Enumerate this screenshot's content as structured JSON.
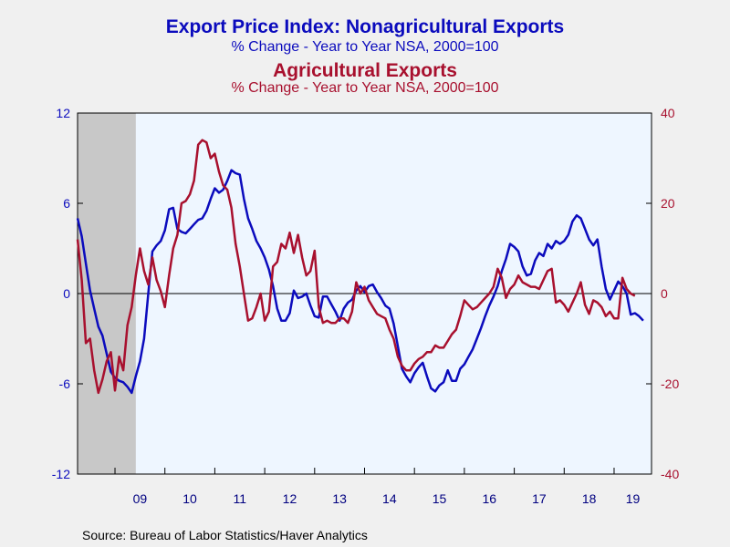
{
  "titles": {
    "line1": "Export Price Index: Nonagricultural Exports",
    "line2": "% Change - Year to Year    NSA, 2000=100",
    "line3": "Agricultural Exports",
    "line4": "% Change - Year to Year    NSA, 2000=100"
  },
  "source": "Source:  Bureau of Labor Statistics/Haver Analytics",
  "chart_data": {
    "type": "line",
    "x_range": [
      "2008-04",
      "2019-10"
    ],
    "x_tick_labels": [
      "09",
      "10",
      "11",
      "12",
      "13",
      "14",
      "15",
      "16",
      "17",
      "18",
      "19"
    ],
    "recession": [
      "2008-04",
      "2009-06"
    ],
    "left_axis": {
      "ylim": [
        -12,
        12
      ],
      "ticks": [
        12,
        6,
        0,
        -6,
        -12
      ],
      "color": "#0b0bbd"
    },
    "right_axis": {
      "ylim": [
        -40,
        40
      ],
      "ticks": [
        40,
        20,
        0,
        -20,
        -40
      ],
      "color": "#a8102e"
    },
    "zero_line": true,
    "series": [
      {
        "axis": "left",
        "color": "#0b0bbd",
        "points": [
          [
            "2008-04",
            5.0
          ],
          [
            "2008-05",
            3.8
          ],
          [
            "2008-06",
            2.0
          ],
          [
            "2008-07",
            0.2
          ],
          [
            "2008-08",
            -1.0
          ],
          [
            "2008-09",
            -2.2
          ],
          [
            "2008-10",
            -2.8
          ],
          [
            "2008-11",
            -4.0
          ],
          [
            "2008-12",
            -5.2
          ],
          [
            "2009-01",
            -5.6
          ],
          [
            "2009-02",
            -5.8
          ],
          [
            "2009-03",
            -5.9
          ],
          [
            "2009-04",
            -6.2
          ],
          [
            "2009-05",
            -6.6
          ],
          [
            "2009-06",
            -5.5
          ],
          [
            "2009-07",
            -4.5
          ],
          [
            "2009-08",
            -3.0
          ],
          [
            "2009-09",
            0.0
          ],
          [
            "2009-10",
            2.8
          ],
          [
            "2009-11",
            3.2
          ],
          [
            "2009-12",
            3.5
          ],
          [
            "2010-01",
            4.2
          ],
          [
            "2010-02",
            5.6
          ],
          [
            "2010-03",
            5.7
          ],
          [
            "2010-04",
            4.3
          ],
          [
            "2010-05",
            4.1
          ],
          [
            "2010-06",
            4.0
          ],
          [
            "2010-07",
            4.3
          ],
          [
            "2010-08",
            4.6
          ],
          [
            "2010-09",
            4.9
          ],
          [
            "2010-10",
            5.0
          ],
          [
            "2010-11",
            5.5
          ],
          [
            "2010-12",
            6.3
          ],
          [
            "2011-01",
            7.0
          ],
          [
            "2011-02",
            6.7
          ],
          [
            "2011-03",
            6.9
          ],
          [
            "2011-04",
            7.5
          ],
          [
            "2011-05",
            8.2
          ],
          [
            "2011-06",
            8.0
          ],
          [
            "2011-07",
            7.9
          ],
          [
            "2011-08",
            6.3
          ],
          [
            "2011-09",
            5.0
          ],
          [
            "2011-10",
            4.3
          ],
          [
            "2011-11",
            3.5
          ],
          [
            "2011-12",
            3.0
          ],
          [
            "2012-01",
            2.4
          ],
          [
            "2012-02",
            1.6
          ],
          [
            "2012-03",
            0.5
          ],
          [
            "2012-04",
            -1.0
          ],
          [
            "2012-05",
            -1.8
          ],
          [
            "2012-06",
            -1.8
          ],
          [
            "2012-07",
            -1.3
          ],
          [
            "2012-08",
            0.2
          ],
          [
            "2012-09",
            -0.3
          ],
          [
            "2012-10",
            -0.2
          ],
          [
            "2012-11",
            0.0
          ],
          [
            "2012-12",
            -0.8
          ],
          [
            "2013-01",
            -1.5
          ],
          [
            "2013-02",
            -1.6
          ],
          [
            "2013-03",
            -0.2
          ],
          [
            "2013-04",
            -0.2
          ],
          [
            "2013-05",
            -0.7
          ],
          [
            "2013-06",
            -1.2
          ],
          [
            "2013-07",
            -1.8
          ],
          [
            "2013-08",
            -1.0
          ],
          [
            "2013-09",
            -0.6
          ],
          [
            "2013-10",
            -0.4
          ],
          [
            "2013-11",
            0.2
          ],
          [
            "2013-12",
            0.5
          ],
          [
            "2014-01",
            0.1
          ],
          [
            "2014-02",
            0.5
          ],
          [
            "2014-03",
            0.6
          ],
          [
            "2014-04",
            0.1
          ],
          [
            "2014-05",
            -0.3
          ],
          [
            "2014-06",
            -0.8
          ],
          [
            "2014-07",
            -1.0
          ],
          [
            "2014-08",
            -2.0
          ],
          [
            "2014-09",
            -3.5
          ],
          [
            "2014-10",
            -5.0
          ],
          [
            "2014-11",
            -5.5
          ],
          [
            "2014-12",
            -5.9
          ],
          [
            "2015-01",
            -5.3
          ],
          [
            "2015-02",
            -4.9
          ],
          [
            "2015-03",
            -4.6
          ],
          [
            "2015-04",
            -5.5
          ],
          [
            "2015-05",
            -6.3
          ],
          [
            "2015-06",
            -6.5
          ],
          [
            "2015-07",
            -6.1
          ],
          [
            "2015-08",
            -5.9
          ],
          [
            "2015-09",
            -5.1
          ],
          [
            "2015-10",
            -5.8
          ],
          [
            "2015-11",
            -5.8
          ],
          [
            "2015-12",
            -5.0
          ],
          [
            "2016-01",
            -4.7
          ],
          [
            "2016-02",
            -4.2
          ],
          [
            "2016-03",
            -3.7
          ],
          [
            "2016-04",
            -3.0
          ],
          [
            "2016-05",
            -2.3
          ],
          [
            "2016-06",
            -1.5
          ],
          [
            "2016-07",
            -0.8
          ],
          [
            "2016-08",
            -0.2
          ],
          [
            "2016-09",
            0.5
          ],
          [
            "2016-10",
            1.5
          ],
          [
            "2016-11",
            2.3
          ],
          [
            "2016-12",
            3.3
          ],
          [
            "2017-01",
            3.1
          ],
          [
            "2017-02",
            2.8
          ],
          [
            "2017-03",
            1.8
          ],
          [
            "2017-04",
            1.2
          ],
          [
            "2017-05",
            1.3
          ],
          [
            "2017-06",
            2.2
          ],
          [
            "2017-07",
            2.7
          ],
          [
            "2017-08",
            2.5
          ],
          [
            "2017-09",
            3.3
          ],
          [
            "2017-10",
            3.0
          ],
          [
            "2017-11",
            3.5
          ],
          [
            "2017-12",
            3.3
          ],
          [
            "2018-01",
            3.5
          ],
          [
            "2018-02",
            3.9
          ],
          [
            "2018-03",
            4.8
          ],
          [
            "2018-04",
            5.2
          ],
          [
            "2018-05",
            5.0
          ],
          [
            "2018-06",
            4.3
          ],
          [
            "2018-07",
            3.6
          ],
          [
            "2018-08",
            3.2
          ],
          [
            "2018-09",
            3.6
          ],
          [
            "2018-10",
            1.8
          ],
          [
            "2018-11",
            0.3
          ],
          [
            "2018-12",
            -0.4
          ],
          [
            "2019-01",
            0.2
          ],
          [
            "2019-02",
            0.8
          ],
          [
            "2019-03",
            0.5
          ],
          [
            "2019-04",
            0.0
          ],
          [
            "2019-05",
            -1.4
          ],
          [
            "2019-06",
            -1.3
          ],
          [
            "2019-07",
            -1.5
          ],
          [
            "2019-08",
            -1.8
          ]
        ]
      },
      {
        "axis": "right",
        "color": "#a8102e",
        "points": [
          [
            "2008-04",
            12.0
          ],
          [
            "2008-05",
            3.0
          ],
          [
            "2008-06",
            -11.0
          ],
          [
            "2008-07",
            -10.0
          ],
          [
            "2008-08",
            -17.0
          ],
          [
            "2008-09",
            -22.0
          ],
          [
            "2008-10",
            -19.0
          ],
          [
            "2008-11",
            -15.0
          ],
          [
            "2008-12",
            -13.0
          ],
          [
            "2009-01",
            -21.5
          ],
          [
            "2009-02",
            -14.0
          ],
          [
            "2009-03",
            -17.0
          ],
          [
            "2009-04",
            -7.0
          ],
          [
            "2009-05",
            -3.0
          ],
          [
            "2009-06",
            4.0
          ],
          [
            "2009-07",
            10.0
          ],
          [
            "2009-08",
            5.0
          ],
          [
            "2009-09",
            2.0
          ],
          [
            "2009-10",
            8.0
          ],
          [
            "2009-11",
            3.0
          ],
          [
            "2009-12",
            0.5
          ],
          [
            "2010-01",
            -3.0
          ],
          [
            "2010-02",
            4.0
          ],
          [
            "2010-03",
            10.0
          ],
          [
            "2010-04",
            13.0
          ],
          [
            "2010-05",
            20.0
          ],
          [
            "2010-06",
            20.5
          ],
          [
            "2010-07",
            22.0
          ],
          [
            "2010-08",
            25.0
          ],
          [
            "2010-09",
            33.0
          ],
          [
            "2010-10",
            34.0
          ],
          [
            "2010-11",
            33.5
          ],
          [
            "2010-12",
            30.0
          ],
          [
            "2011-01",
            31.0
          ],
          [
            "2011-02",
            27.0
          ],
          [
            "2011-03",
            24.0
          ],
          [
            "2011-04",
            23.0
          ],
          [
            "2011-05",
            19.0
          ],
          [
            "2011-06",
            11.0
          ],
          [
            "2011-07",
            6.0
          ],
          [
            "2011-08",
            0.0
          ],
          [
            "2011-09",
            -6.0
          ],
          [
            "2011-10",
            -5.5
          ],
          [
            "2011-11",
            -3.0
          ],
          [
            "2011-12",
            0.0
          ],
          [
            "2012-01",
            -6.0
          ],
          [
            "2012-02",
            -4.0
          ],
          [
            "2012-03",
            6.0
          ],
          [
            "2012-04",
            7.0
          ],
          [
            "2012-05",
            11.0
          ],
          [
            "2012-06",
            10.0
          ],
          [
            "2012-07",
            13.5
          ],
          [
            "2012-08",
            9.0
          ],
          [
            "2012-09",
            13.0
          ],
          [
            "2012-10",
            8.0
          ],
          [
            "2012-11",
            4.0
          ],
          [
            "2012-12",
            5.0
          ],
          [
            "2013-01",
            9.5
          ],
          [
            "2013-02",
            -3.0
          ],
          [
            "2013-03",
            -6.5
          ],
          [
            "2013-04",
            -6.0
          ],
          [
            "2013-05",
            -6.5
          ],
          [
            "2013-06",
            -6.5
          ],
          [
            "2013-07",
            -5.5
          ],
          [
            "2013-08",
            -5.5
          ],
          [
            "2013-09",
            -6.5
          ],
          [
            "2013-10",
            -4.0
          ],
          [
            "2013-11",
            2.5
          ],
          [
            "2013-12",
            0.0
          ],
          [
            "2014-01",
            1.5
          ],
          [
            "2014-02",
            -1.5
          ],
          [
            "2014-03",
            -3.0
          ],
          [
            "2014-04",
            -4.5
          ],
          [
            "2014-05",
            -5.0
          ],
          [
            "2014-06",
            -5.5
          ],
          [
            "2014-07",
            -8.0
          ],
          [
            "2014-08",
            -10.0
          ],
          [
            "2014-09",
            -14.0
          ],
          [
            "2014-10",
            -16.0
          ],
          [
            "2014-11",
            -17.0
          ],
          [
            "2014-12",
            -17.0
          ],
          [
            "2015-01",
            -15.5
          ],
          [
            "2015-02",
            -14.5
          ],
          [
            "2015-03",
            -14.0
          ],
          [
            "2015-04",
            -13.0
          ],
          [
            "2015-05",
            -13.0
          ],
          [
            "2015-06",
            -11.5
          ],
          [
            "2015-07",
            -12.0
          ],
          [
            "2015-08",
            -12.0
          ],
          [
            "2015-09",
            -10.5
          ],
          [
            "2015-10",
            -9.0
          ],
          [
            "2015-11",
            -8.0
          ],
          [
            "2015-12",
            -5.0
          ],
          [
            "2016-01",
            -1.5
          ],
          [
            "2016-02",
            -2.5
          ],
          [
            "2016-03",
            -3.5
          ],
          [
            "2016-04",
            -3.0
          ],
          [
            "2016-05",
            -2.0
          ],
          [
            "2016-06",
            -1.0
          ],
          [
            "2016-07",
            0.0
          ],
          [
            "2016-08",
            1.5
          ],
          [
            "2016-09",
            5.5
          ],
          [
            "2016-10",
            3.5
          ],
          [
            "2016-11",
            -1.0
          ],
          [
            "2016-12",
            1.0
          ],
          [
            "2017-01",
            2.0
          ],
          [
            "2017-02",
            4.0
          ],
          [
            "2017-03",
            2.5
          ],
          [
            "2017-04",
            2.0
          ],
          [
            "2017-05",
            1.5
          ],
          [
            "2017-06",
            1.5
          ],
          [
            "2017-07",
            1.0
          ],
          [
            "2017-08",
            3.0
          ],
          [
            "2017-09",
            5.0
          ],
          [
            "2017-10",
            5.5
          ],
          [
            "2017-11",
            -2.0
          ],
          [
            "2017-12",
            -1.5
          ],
          [
            "2018-01",
            -2.5
          ],
          [
            "2018-02",
            -4.0
          ],
          [
            "2018-03",
            -2.0
          ],
          [
            "2018-04",
            0.0
          ],
          [
            "2018-05",
            2.5
          ],
          [
            "2018-06",
            -2.5
          ],
          [
            "2018-07",
            -4.5
          ],
          [
            "2018-08",
            -1.5
          ],
          [
            "2018-09",
            -2.0
          ],
          [
            "2018-10",
            -3.0
          ],
          [
            "2018-11",
            -5.0
          ],
          [
            "2018-12",
            -4.0
          ],
          [
            "2019-01",
            -5.5
          ],
          [
            "2019-02",
            -5.5
          ],
          [
            "2019-03",
            3.5
          ],
          [
            "2019-04",
            1.0
          ],
          [
            "2019-05",
            0.0
          ],
          [
            "2019-06",
            -0.5
          ]
        ]
      }
    ]
  }
}
